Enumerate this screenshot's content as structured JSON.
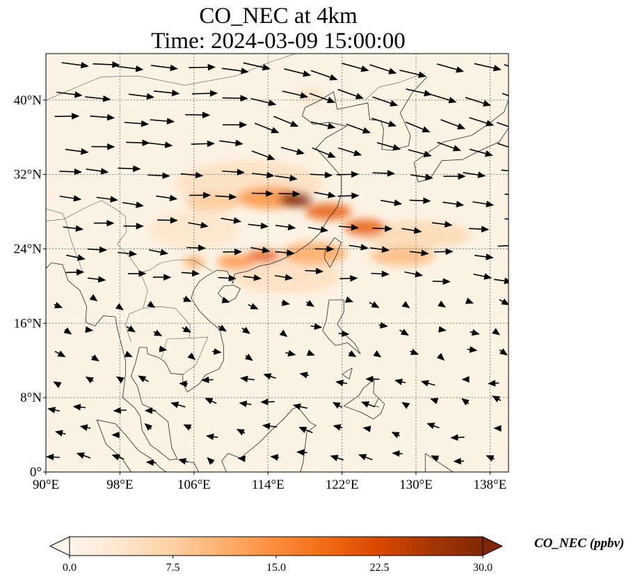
{
  "title_line1": "CO_NEC at 4km",
  "title_line2": "Time: 2024-03-09 15:00:00",
  "map": {
    "lon_range": [
      90,
      140
    ],
    "lat_range": [
      0,
      45
    ],
    "x_ticks": [
      {
        "value": 90,
        "label": "90°E"
      },
      {
        "value": 98,
        "label": "98°E"
      },
      {
        "value": 106,
        "label": "106°E"
      },
      {
        "value": 114,
        "label": "114°E"
      },
      {
        "value": 122,
        "label": "122°E"
      },
      {
        "value": 130,
        "label": "130°E"
      },
      {
        "value": 138,
        "label": "138°E"
      }
    ],
    "y_ticks": [
      {
        "value": 0,
        "label": "0°"
      },
      {
        "value": 8,
        "label": "8°N"
      },
      {
        "value": 16,
        "label": "16°N"
      },
      {
        "value": 24,
        "label": "24°N"
      },
      {
        "value": 32,
        "label": "32°N"
      },
      {
        "value": 40,
        "label": "40°N"
      }
    ],
    "gridlines": true,
    "field_color": "#fdf3e5",
    "coast_color": "#222222",
    "plumes": [
      {
        "lon": 117.0,
        "lat": 29.3,
        "value": 30,
        "rlon": 1.8,
        "rlat": 0.8
      },
      {
        "lon": 120.5,
        "lat": 28.0,
        "value": 20,
        "rlon": 2.5,
        "rlat": 0.9
      },
      {
        "lon": 124.5,
        "lat": 26.3,
        "value": 20,
        "rlon": 2.2,
        "rlat": 0.9
      },
      {
        "lon": 114.2,
        "lat": 29.5,
        "value": 14,
        "rlon": 3.5,
        "rlat": 1.2
      },
      {
        "lon": 108.0,
        "lat": 29.0,
        "value": 8,
        "rlon": 3.0,
        "rlat": 1.0
      },
      {
        "lon": 113.5,
        "lat": 23.2,
        "value": 20,
        "rlon": 1.8,
        "rlat": 0.7
      },
      {
        "lon": 110.5,
        "lat": 22.6,
        "value": 14,
        "rlon": 2.0,
        "rlat": 0.8
      },
      {
        "lon": 106.0,
        "lat": 22.6,
        "value": 12,
        "rlon": 1.2,
        "rlat": 0.6
      },
      {
        "lon": 119.0,
        "lat": 23.5,
        "value": 12,
        "rlon": 3.5,
        "rlat": 1.2
      },
      {
        "lon": 128.5,
        "lat": 23.2,
        "value": 10,
        "rlon": 3.5,
        "rlat": 1.0
      },
      {
        "lon": 130.0,
        "lat": 25.5,
        "value": 6,
        "rlon": 6.0,
        "rlat": 1.5
      },
      {
        "lon": 118.5,
        "lat": 40.5,
        "value": 5,
        "rlon": 1.5,
        "rlat": 0.8
      },
      {
        "lon": 116.0,
        "lat": 21.0,
        "value": 5,
        "rlon": 6.0,
        "rlat": 1.8
      },
      {
        "lon": 106.0,
        "lat": 26.0,
        "value": 4,
        "rlon": 5.0,
        "rlat": 2.0
      },
      {
        "lon": 112.0,
        "lat": 31.0,
        "value": 5,
        "rlon": 8.0,
        "rlat": 2.5
      }
    ]
  },
  "colorbar": {
    "min": 0.0,
    "max": 30.0,
    "ticks": [
      "0.0",
      "7.5",
      "15.0",
      "22.5",
      "30.0"
    ],
    "label": "CO_NEC (ppbv)",
    "colors": [
      "#fff5eb",
      "#fee6ce",
      "#fdd0a2",
      "#fdae6b",
      "#fd8d3c",
      "#f16913",
      "#d94801",
      "#a63603",
      "#7f2704"
    ]
  }
}
